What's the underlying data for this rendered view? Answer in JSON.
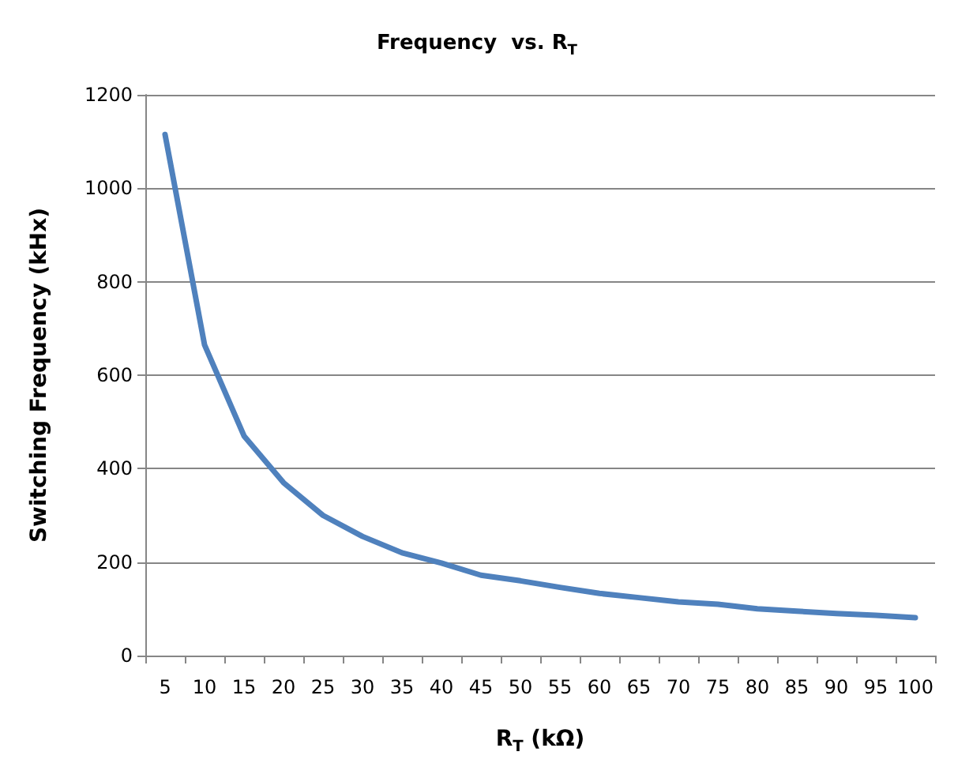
{
  "chart_data": {
    "type": "line",
    "title": "Frequency  vs. R$_{T}$",
    "xlabel": "R$_{T}$ (kΩ)",
    "ylabel": "Switching Frequency (kHx)",
    "categories": [
      "5",
      "10",
      "15",
      "20",
      "25",
      "30",
      "35",
      "40",
      "45",
      "50",
      "55",
      "60",
      "65",
      "70",
      "75",
      "80",
      "85",
      "90",
      "95",
      "100"
    ],
    "series": [
      {
        "color": "#4f81bd",
        "values": [
          1115,
          665,
          470,
          370,
          300,
          255,
          220,
          198,
          172,
          160,
          146,
          133,
          124,
          115,
          110,
          100,
          95,
          90,
          86,
          81
        ]
      }
    ],
    "ylim": [
      0,
      1200
    ],
    "yticks": [
      0,
      200,
      400,
      600,
      800,
      1000,
      1200
    ],
    "grid": "y",
    "marker": "none",
    "line_style": "solid"
  }
}
